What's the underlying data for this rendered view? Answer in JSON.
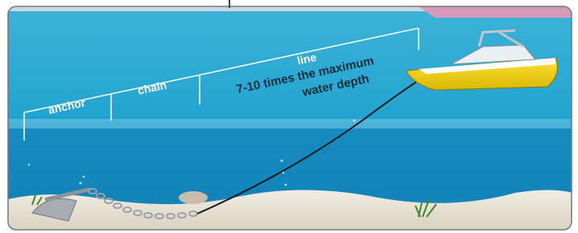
{
  "labels": {
    "anchor": "anchor",
    "chain": "chain",
    "line": "line",
    "scope_line1": "7-10 times the maximum",
    "scope_line2": "water depth"
  }
}
